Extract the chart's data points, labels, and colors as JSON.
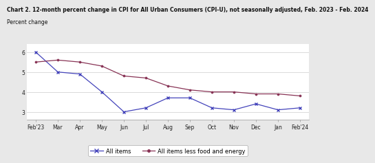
{
  "title_line1": "Chart 2. 12-month percent change in CPI for All Urban Consumers (CPI-U), not seasonally adjusted, Feb. 2023 - Feb. 2024",
  "title_line2": "Percent change",
  "x_labels": [
    "Feb'23",
    "Mar",
    "Apr",
    "May",
    "Jun",
    "Jul",
    "Aug",
    "Sep",
    "Oct",
    "Nov",
    "Dec",
    "Jan",
    "Feb'24"
  ],
  "all_items": [
    6.0,
    5.0,
    4.9,
    4.0,
    3.0,
    3.2,
    3.7,
    3.7,
    3.2,
    3.1,
    3.4,
    3.1,
    3.2
  ],
  "core_items": [
    5.5,
    5.6,
    5.5,
    5.3,
    4.8,
    4.7,
    4.3,
    4.1,
    4.0,
    4.0,
    3.9,
    3.9,
    3.8
  ],
  "all_items_color": "#4444bb",
  "core_items_color": "#883355",
  "ylim": [
    2.6,
    6.4
  ],
  "yticks": [
    3,
    4,
    5,
    6
  ],
  "legend_labels": [
    "All items",
    "All items less food and energy"
  ],
  "title_fontsize": 5.5,
  "subtitle_fontsize": 5.5,
  "tick_fontsize": 5.5,
  "legend_fontsize": 6.0,
  "background_color": "#e8e8e8",
  "plot_bg_color": "#ffffff"
}
